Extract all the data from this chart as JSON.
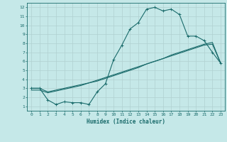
{
  "xlabel": "Humidex (Indice chaleur)",
  "xlim": [
    -0.5,
    23.5
  ],
  "ylim": [
    0.5,
    12.5
  ],
  "xticks": [
    0,
    1,
    2,
    3,
    4,
    5,
    6,
    7,
    8,
    9,
    10,
    11,
    12,
    13,
    14,
    15,
    16,
    17,
    18,
    19,
    20,
    21,
    22,
    23
  ],
  "yticks": [
    1,
    2,
    3,
    4,
    5,
    6,
    7,
    8,
    9,
    10,
    11,
    12
  ],
  "bg_color": "#c5e8e8",
  "grid_color": "#b0d0d0",
  "line_color": "#1a6b6b",
  "line1_x": [
    0,
    1,
    2,
    3,
    4,
    5,
    6,
    7,
    8,
    9,
    10,
    11,
    12,
    13,
    14,
    15,
    16,
    17,
    18,
    19,
    20,
    21,
    22,
    23
  ],
  "line1_y": [
    3.0,
    3.0,
    1.7,
    1.2,
    1.5,
    1.4,
    1.4,
    1.2,
    2.6,
    3.5,
    6.2,
    7.8,
    9.6,
    10.3,
    11.8,
    12.0,
    11.6,
    11.8,
    11.2,
    8.8,
    8.8,
    8.3,
    7.0,
    5.8
  ],
  "line2_x": [
    0,
    1,
    2,
    3,
    4,
    5,
    6,
    7,
    8,
    9,
    10,
    11,
    12,
    13,
    14,
    15,
    16,
    17,
    18,
    19,
    20,
    21,
    22,
    23
  ],
  "line2_y": [
    3.0,
    3.0,
    2.6,
    2.8,
    3.0,
    3.2,
    3.4,
    3.6,
    3.8,
    4.1,
    4.4,
    4.7,
    5.0,
    5.3,
    5.7,
    6.0,
    6.3,
    6.7,
    7.0,
    7.3,
    7.6,
    7.9,
    8.1,
    5.8
  ],
  "line3_x": [
    0,
    1,
    2,
    3,
    4,
    5,
    6,
    7,
    8,
    9,
    10,
    11,
    12,
    13,
    14,
    15,
    16,
    17,
    18,
    19,
    20,
    21,
    22,
    23
  ],
  "line3_y": [
    2.8,
    2.8,
    2.5,
    2.7,
    2.9,
    3.1,
    3.3,
    3.6,
    3.9,
    4.2,
    4.5,
    4.8,
    5.1,
    5.4,
    5.7,
    6.0,
    6.3,
    6.6,
    6.9,
    7.2,
    7.5,
    7.8,
    7.9,
    5.8
  ]
}
